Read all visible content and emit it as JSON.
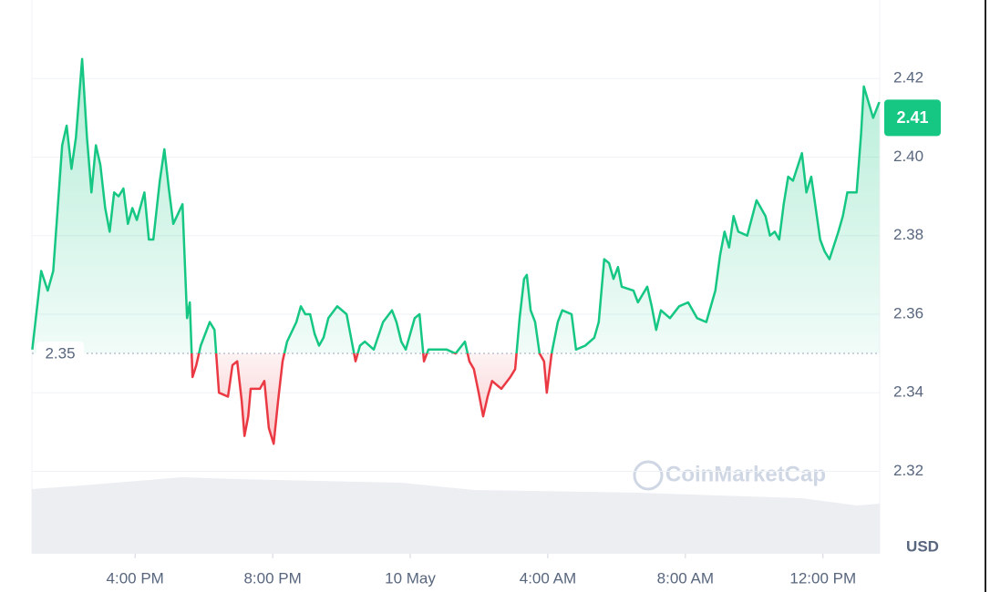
{
  "chart_data": {
    "type": "line",
    "watermark": "CoinMarketCap",
    "currency": "USD",
    "baseline": 2.35,
    "current_price": 2.41,
    "color_up": "#16c784",
    "color_down": "#ea3943",
    "grid": true,
    "xlim": [
      13,
      37.65
    ],
    "ylim": [
      2.299,
      2.44
    ],
    "xticks": [
      {
        "value": 16,
        "label": "4:00 PM"
      },
      {
        "value": 20,
        "label": "8:00 PM"
      },
      {
        "value": 24,
        "label": "10 May"
      },
      {
        "value": 28,
        "label": "4:00 AM"
      },
      {
        "value": 32,
        "label": "8:00 AM"
      },
      {
        "value": 36,
        "label": "12:00 PM"
      }
    ],
    "yticks": [
      2.32,
      2.34,
      2.36,
      2.38,
      {
        "value": 2.4,
        "label": "2.40"
      },
      2.42
    ],
    "x": [
      13.01,
      13.27,
      13.46,
      13.62,
      13.75,
      13.88,
      14.01,
      14.15,
      14.28,
      14.46,
      14.6,
      14.73,
      14.86,
      14.99,
      15.13,
      15.26,
      15.39,
      15.52,
      15.66,
      15.79,
      15.92,
      16.05,
      16.27,
      16.4,
      16.53,
      16.72,
      16.85,
      16.98,
      17.11,
      17.38,
      17.51,
      17.59,
      17.67,
      17.78,
      17.91,
      18.17,
      18.31,
      18.44,
      18.7,
      18.83,
      18.97,
      19.1,
      19.18,
      19.29,
      19.36,
      19.63,
      19.76,
      19.89,
      20.03,
      20.16,
      20.29,
      20.42,
      20.69,
      20.82,
      20.95,
      21.09,
      21.22,
      21.35,
      21.48,
      21.62,
      21.88,
      22.15,
      22.28,
      22.41,
      22.54,
      22.68,
      22.94,
      23.21,
      23.47,
      23.6,
      23.74,
      23.87,
      24.13,
      24.27,
      24.4,
      24.53,
      24.8,
      25.06,
      25.32,
      25.59,
      25.72,
      25.85,
      25.99,
      26.12,
      26.25,
      26.38,
      26.65,
      26.91,
      27.05,
      27.18,
      27.31,
      27.39,
      27.5,
      27.63,
      27.76,
      27.89,
      27.97,
      28.11,
      28.29,
      28.42,
      28.69,
      28.82,
      29.09,
      29.35,
      29.48,
      29.64,
      29.78,
      29.91,
      30.04,
      30.15,
      30.49,
      30.62,
      30.89,
      31.02,
      31.15,
      31.29,
      31.55,
      31.82,
      32.08,
      32.34,
      32.61,
      32.87,
      33.01,
      33.14,
      33.27,
      33.4,
      33.54,
      33.8,
      34.07,
      34.33,
      34.46,
      34.6,
      34.73,
      34.86,
      34.99,
      35.13,
      35.39,
      35.52,
      35.66,
      35.92,
      36.05,
      36.19,
      36.45,
      36.58,
      36.71,
      36.98,
      37.11,
      37.19,
      37.46,
      37.64
    ],
    "values": [
      2.351,
      2.371,
      2.366,
      2.371,
      2.387,
      2.403,
      2.408,
      2.397,
      2.405,
      2.425,
      2.405,
      2.391,
      2.403,
      2.398,
      2.387,
      2.381,
      2.391,
      2.39,
      2.392,
      2.383,
      2.387,
      2.384,
      2.391,
      2.379,
      2.379,
      2.394,
      2.402,
      2.392,
      2.383,
      2.388,
      2.359,
      2.363,
      2.344,
      2.347,
      2.352,
      2.358,
      2.356,
      2.34,
      2.339,
      2.347,
      2.348,
      2.338,
      2.329,
      2.334,
      2.341,
      2.341,
      2.343,
      2.331,
      2.327,
      2.338,
      2.348,
      2.353,
      2.358,
      2.362,
      2.36,
      2.36,
      2.355,
      2.352,
      2.354,
      2.359,
      2.362,
      2.36,
      2.354,
      2.348,
      2.352,
      2.353,
      2.351,
      2.358,
      2.361,
      2.358,
      2.353,
      2.351,
      2.359,
      2.36,
      2.348,
      2.351,
      2.351,
      2.351,
      2.35,
      2.353,
      2.348,
      2.346,
      2.34,
      2.334,
      2.339,
      2.343,
      2.341,
      2.344,
      2.346,
      2.359,
      2.369,
      2.37,
      2.361,
      2.358,
      2.35,
      2.348,
      2.34,
      2.35,
      2.358,
      2.361,
      2.36,
      2.351,
      2.352,
      2.354,
      2.358,
      2.374,
      2.373,
      2.369,
      2.372,
      2.367,
      2.366,
      2.363,
      2.367,
      2.362,
      2.356,
      2.361,
      2.359,
      2.362,
      2.363,
      2.359,
      2.358,
      2.366,
      2.375,
      2.381,
      2.377,
      2.385,
      2.381,
      2.38,
      2.389,
      2.385,
      2.38,
      2.381,
      2.379,
      2.388,
      2.395,
      2.394,
      2.401,
      2.391,
      2.395,
      2.379,
      2.376,
      2.374,
      2.381,
      2.385,
      2.391,
      2.391,
      2.406,
      2.418,
      2.41,
      2.414
    ]
  }
}
